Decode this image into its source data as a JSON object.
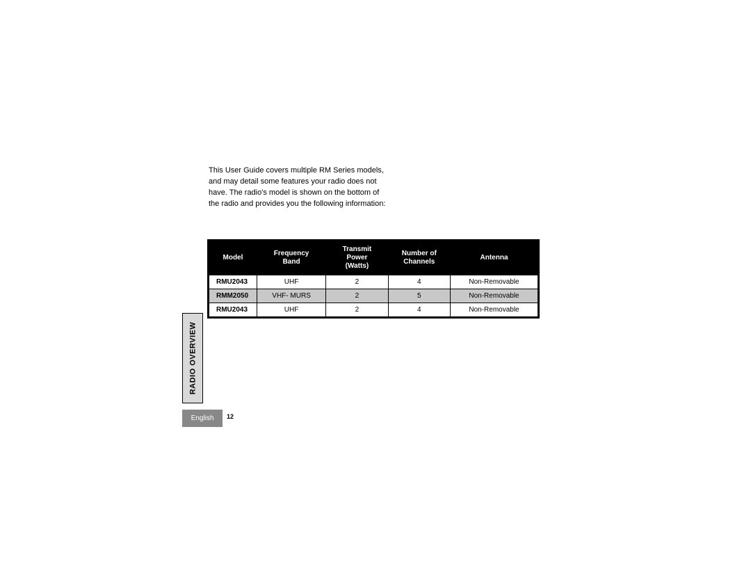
{
  "intro_text": "This User Guide covers multiple RM Series models, and may detail some features your radio does not have. The radio's model is shown on the bottom of the radio and provides you the following information:",
  "sidebar_label": "RADIO OVERVIEW",
  "language": "English",
  "page_number": "12",
  "table": {
    "columns": [
      {
        "label_lines": [
          "Model"
        ]
      },
      {
        "label_lines": [
          "Frequency",
          "Band"
        ]
      },
      {
        "label_lines": [
          "Transmit",
          "Power",
          "(Watts)"
        ]
      },
      {
        "label_lines": [
          "Number of",
          "Channels"
        ]
      },
      {
        "label_lines": [
          "Antenna"
        ]
      }
    ],
    "rows": [
      {
        "shaded": false,
        "cells": [
          "RMU2043",
          "UHF",
          "2",
          "4",
          "Non-Removable"
        ]
      },
      {
        "shaded": true,
        "cells": [
          "RMM2050",
          "VHF- MURS",
          "2",
          "5",
          "Non-Removable"
        ]
      },
      {
        "shaded": false,
        "cells": [
          "RMU2043",
          "UHF",
          "2",
          "4",
          "Non-Removable"
        ]
      }
    ],
    "header_bg": "#000000",
    "header_fg": "#ffffff",
    "row_bg": "#ffffff",
    "row_shaded_bg": "#c8c8c8",
    "border_color": "#000000"
  }
}
